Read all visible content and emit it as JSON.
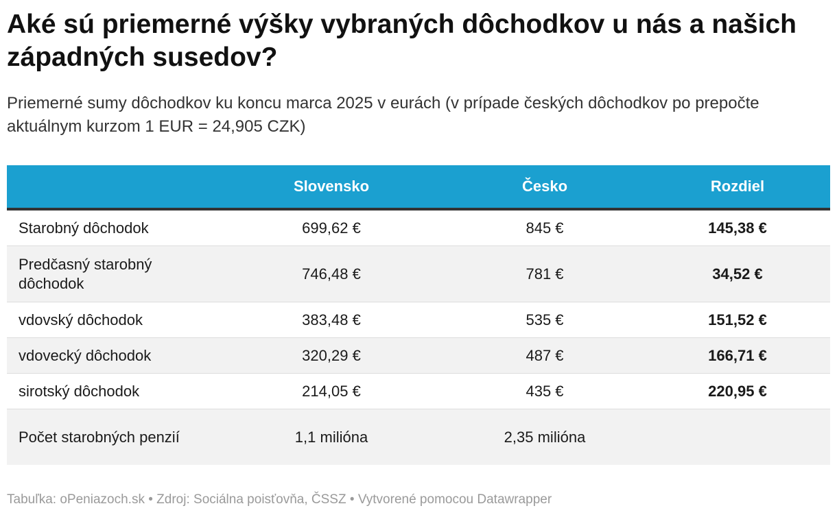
{
  "header": {
    "title": "Aké sú priemerné výšky vybraných dôchodkov u nás a našich západných susedov?",
    "subtitle": "Priemerné sumy dôchodkov ku koncu marca 2025 v eurách (v prípade českých dôchodkov po prepočte aktuálnym kurzom 1 EUR = 24,905 CZK)"
  },
  "chart_data": {
    "type": "table",
    "columns": [
      "",
      "Slovensko",
      "Česko",
      "Rozdiel"
    ],
    "rows": [
      {
        "label": "Starobný dôchodok",
        "slovensko": "699,62 €",
        "cesko": "845 €",
        "rozdiel": "145,38 €"
      },
      {
        "label": "Predčasný starobný dôchodok",
        "slovensko": "746,48 €",
        "cesko": "781 €",
        "rozdiel": "34,52 €"
      },
      {
        "label": "vdovský dôchodok",
        "slovensko": "383,48 €",
        "cesko": "535 €",
        "rozdiel": "151,52 €"
      },
      {
        "label": "vdovecký dôchodok",
        "slovensko": "320,29 €",
        "cesko": "487 €",
        "rozdiel": "166,71 €"
      },
      {
        "label": "sirotský dôchodok",
        "slovensko": "214,05 €",
        "cesko": "435 €",
        "rozdiel": "220,95 €"
      },
      {
        "label": "Počet starobných penzií",
        "slovensko": "1,1 milióna",
        "cesko": "2,35 milióna",
        "rozdiel": ""
      }
    ]
  },
  "footer": {
    "table_by": "Tabuľka: oPeniazoch.sk",
    "source": "Zdroj: Sociálna poisťovňa, ČSSZ",
    "created_with": "Vytvorené pomocou Datawrapper",
    "separator": " • "
  },
  "colors": {
    "header_bg": "#1ba0d0",
    "header_text": "#ffffff",
    "alt_row_bg": "#f2f2f2",
    "footer_text": "#9a9a9a"
  }
}
